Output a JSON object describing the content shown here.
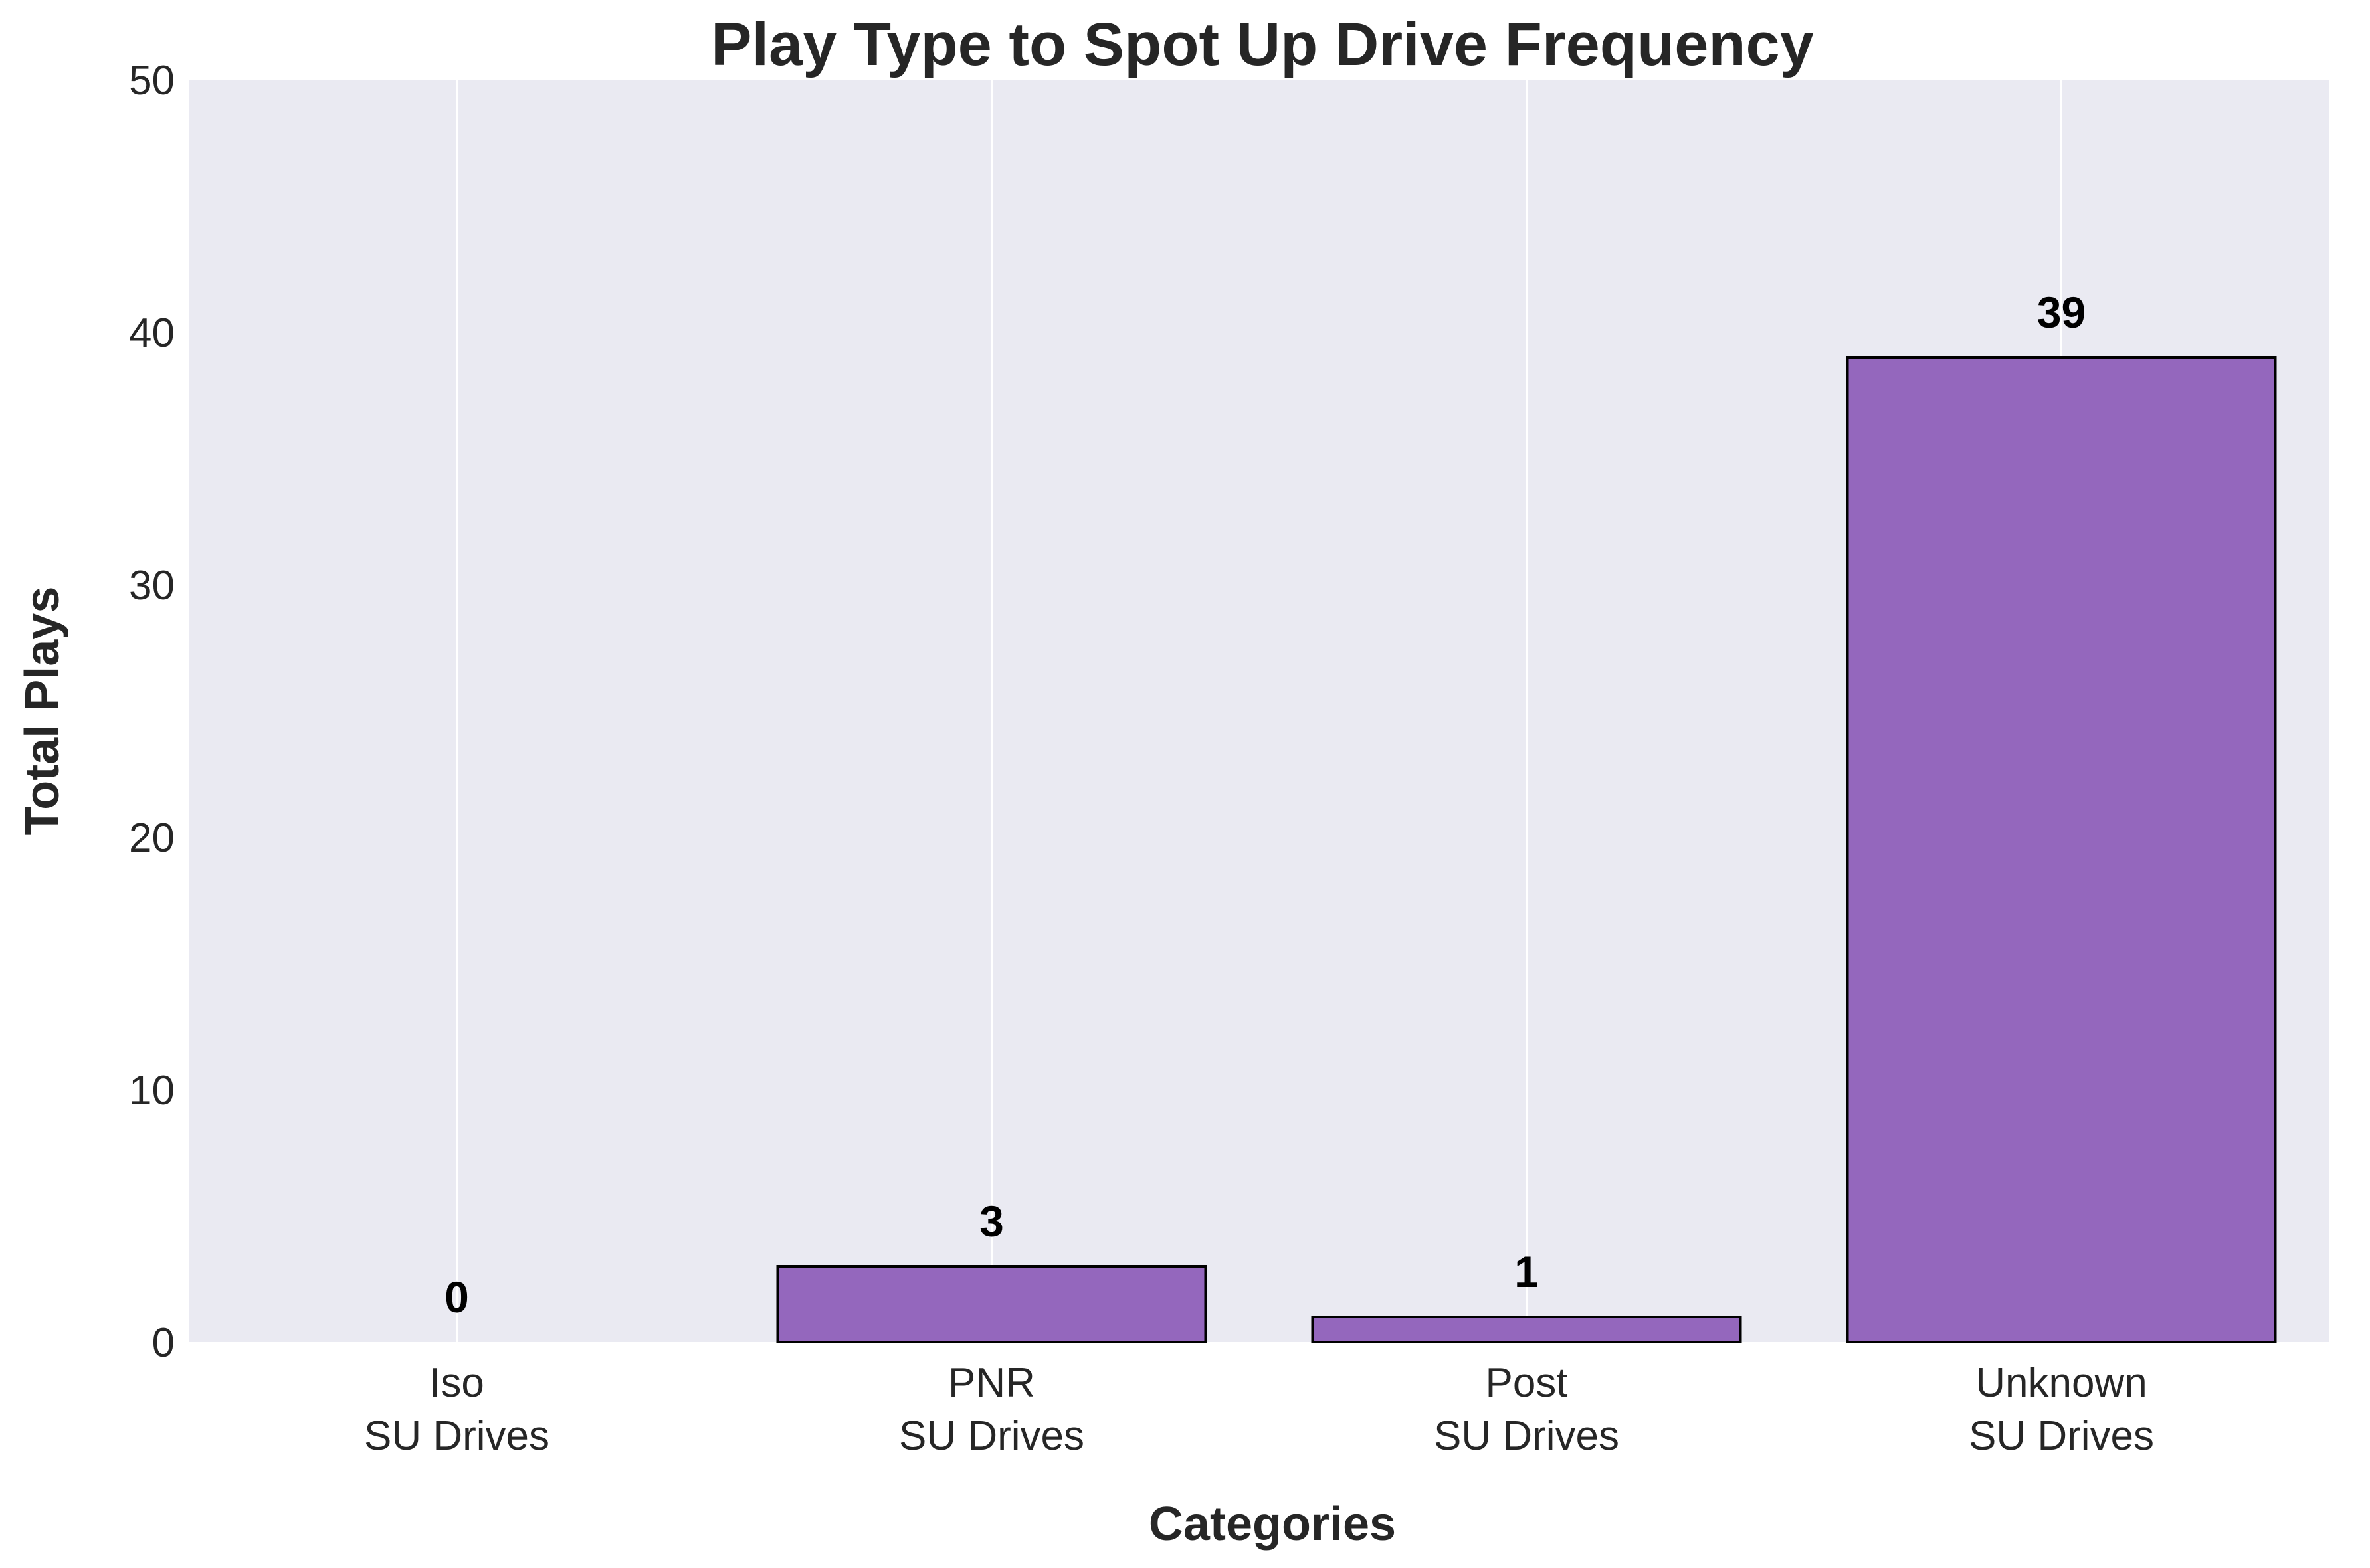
{
  "chart_data": {
    "type": "bar",
    "title": "Play Type to Spot Up Drive Frequency",
    "xlabel": "Categories",
    "ylabel": "Total Plays",
    "categories": [
      [
        "Iso",
        "SU Drives"
      ],
      [
        "PNR",
        "SU Drives"
      ],
      [
        "Post",
        "SU Drives"
      ],
      [
        "Unknown",
        "SU Drives"
      ]
    ],
    "values": [
      0,
      3,
      1,
      39
    ],
    "data_labels": [
      "0",
      "3",
      "1",
      "39"
    ],
    "ylim": [
      0,
      50
    ],
    "yticks": [
      0,
      10,
      20,
      30,
      40,
      50
    ],
    "grid": true,
    "colors": {
      "bar": "#9467bd",
      "bar_edge": "#000000",
      "plot_bg": "#eaeaf2",
      "grid": "#ffffff",
      "text": "#262626"
    }
  }
}
